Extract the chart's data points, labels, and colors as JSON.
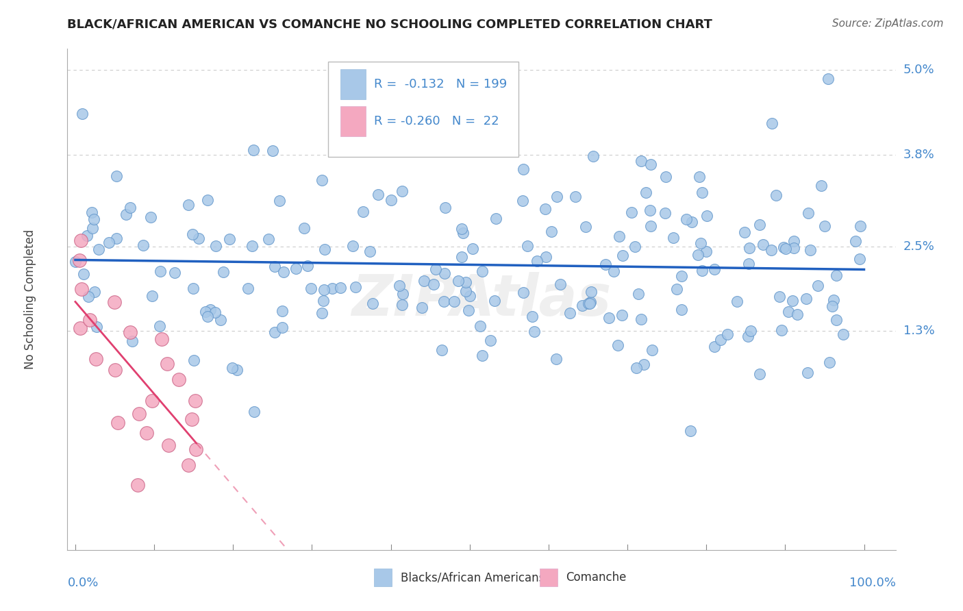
{
  "title": "BLACK/AFRICAN AMERICAN VS COMANCHE NO SCHOOLING COMPLETED CORRELATION CHART",
  "source": "Source: ZipAtlas.com",
  "ylabel": "No Schooling Completed",
  "legend_labels": [
    "Blacks/African Americans",
    "Comanche"
  ],
  "blue_R": "-0.132",
  "blue_N": "199",
  "pink_R": "-0.260",
  "pink_N": "22",
  "y_max": 0.053,
  "y_min": -0.018,
  "x_max": 1.04,
  "x_min": -0.01,
  "watermark": "ZIPAtlas",
  "blue_scatter_color": "#a8c8e8",
  "pink_scatter_color": "#f4a8c0",
  "blue_line_color": "#2060c0",
  "pink_line_color": "#e04070",
  "title_color": "#222222",
  "source_color": "#666666",
  "grid_color": "#cccccc",
  "axis_label_color": "#4488cc",
  "legend_border_color": "#bbbbbb",
  "ytick_positions": [
    0.013,
    0.025,
    0.038,
    0.05
  ],
  "ytick_labels": [
    "1.3%",
    "2.5%",
    "3.8%",
    "5.0%"
  ]
}
